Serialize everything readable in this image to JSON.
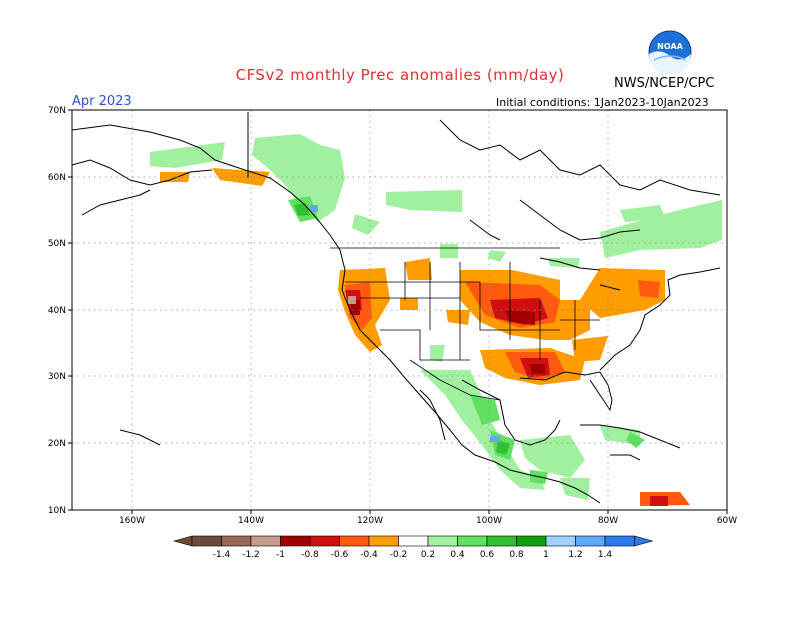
{
  "header": {
    "title": "CFSv2 monthly Prec anomalies (mm/day)",
    "month": "Apr 2023",
    "initial_conditions": "Initial conditions: 1Jan2023-10Jan2023",
    "agency": "NWS/NCEP/CPC"
  },
  "logo": {
    "icon": "noaa-logo",
    "text": "NOAA"
  },
  "map": {
    "region": "North America",
    "lon_labels": [
      "160W",
      "140W",
      "120W",
      "100W",
      "80W",
      "60W"
    ],
    "lat_labels": [
      "70N",
      "60N",
      "50N",
      "40N",
      "30N",
      "20N",
      "10N"
    ]
  },
  "colorbar": {
    "labels": [
      "-1.4",
      "-1.2",
      "-1",
      "-0.8",
      "-0.6",
      "-0.4",
      "-0.2",
      "0.2",
      "0.4",
      "0.6",
      "0.8",
      "1",
      "1.2",
      "1.4"
    ],
    "colors": [
      "#6e4a3a",
      "#9a6a58",
      "#c49a8a",
      "#a00000",
      "#d01010",
      "#ff5a10",
      "#ff9c00",
      "#ffffff",
      "#a0f0a0",
      "#60e060",
      "#30c030",
      "#10a010",
      "#a0d0ff",
      "#60a8f8",
      "#2b7be8"
    ]
  }
}
